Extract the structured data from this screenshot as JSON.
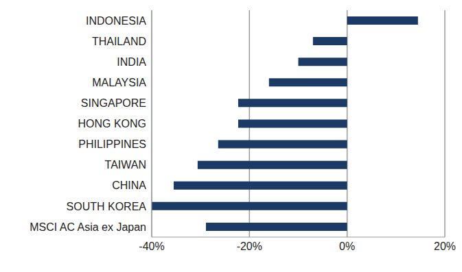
{
  "chart_data": {
    "type": "bar",
    "orientation": "horizontal",
    "categories": [
      "INDONESIA",
      "THAILAND",
      "INDIA",
      "MALAYSIA",
      "SINGAPORE",
      "HONG KONG",
      "PHILIPPINES",
      "TAIWAN",
      "CHINA",
      "SOUTH KOREA",
      "MSCI AC Asia ex Japan"
    ],
    "values": [
      14.5,
      -7,
      -10,
      -16,
      -22.3,
      -22.3,
      -26.4,
      -30.6,
      -35.5,
      -40,
      -28.9
    ],
    "color": "#1b3a66",
    "xlim": [
      -40,
      20
    ],
    "xticks": [
      {
        "value": -40,
        "label": "-40%"
      },
      {
        "value": -20,
        "label": "-20%"
      },
      {
        "value": 0,
        "label": "0%"
      },
      {
        "value": 20,
        "label": "20%"
      }
    ],
    "grid": true
  }
}
